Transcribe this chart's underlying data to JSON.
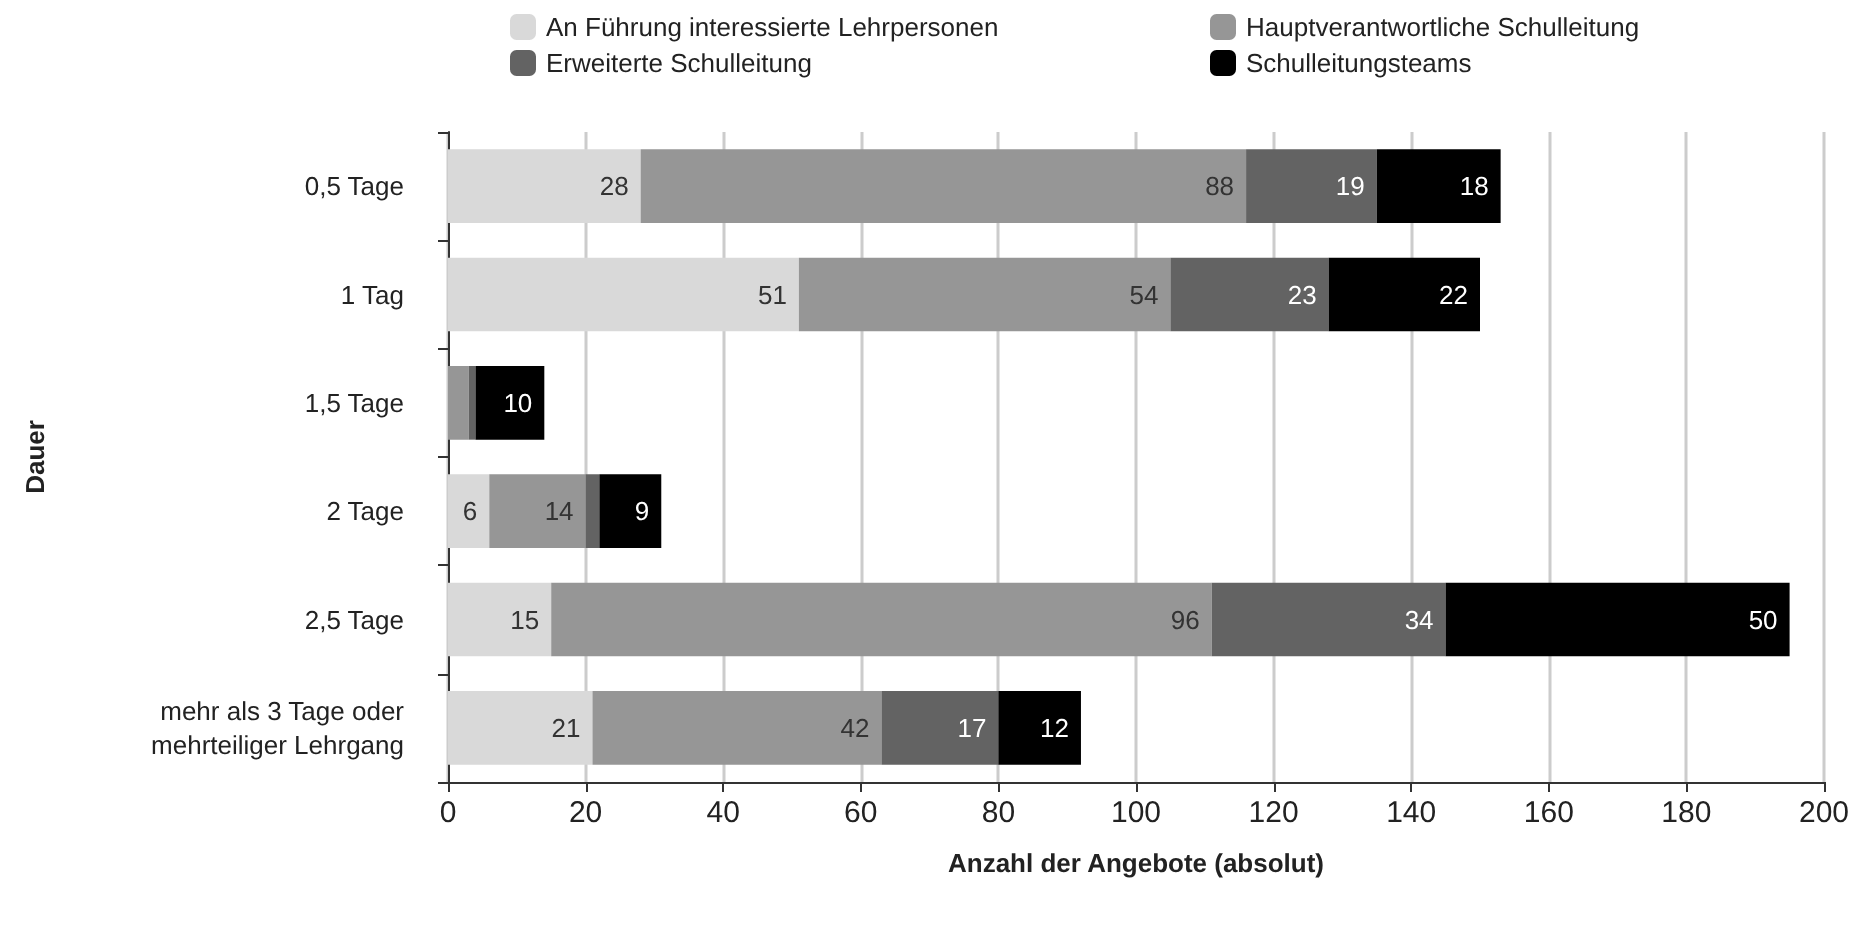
{
  "chart_data": {
    "type": "bar",
    "orientation": "horizontal",
    "stacked": true,
    "xlabel": "Anzahl der Angebote (absolut)",
    "ylabel": "Dauer",
    "categories": [
      "0,5 Tage",
      "1 Tag",
      "1,5 Tage",
      "2 Tage",
      "2,5 Tage",
      "mehr als 3 Tage oder\nmehrteiliger Lehrgang"
    ],
    "series": [
      {
        "name": "An Führung interessierte Lehrpersonen",
        "color": "#d9d9d9",
        "values": [
          28,
          51,
          0,
          6,
          15,
          21
        ],
        "value_labels": [
          "28",
          "51",
          null,
          "6",
          "15",
          "21"
        ]
      },
      {
        "name": "Hauptverantwortliche Schulleitung",
        "color": "#969696",
        "values": [
          88,
          54,
          3,
          14,
          96,
          42
        ],
        "value_labels": [
          "88",
          "54",
          null,
          "14",
          "96",
          "42"
        ]
      },
      {
        "name": "Erweiterte Schulleitung",
        "color": "#636363",
        "values": [
          19,
          23,
          1,
          2,
          34,
          17
        ],
        "value_labels": [
          "19",
          "23",
          null,
          null,
          "34",
          "17"
        ]
      },
      {
        "name": "Schulleitungsteams",
        "color": "#000000",
        "values": [
          18,
          22,
          10,
          9,
          50,
          12
        ],
        "value_labels": [
          "18",
          "22",
          "10",
          "9",
          "50",
          "12"
        ]
      }
    ],
    "xlim": [
      0,
      200
    ],
    "xticks": [
      0,
      20,
      40,
      60,
      80,
      100,
      120,
      140,
      160,
      180,
      200
    ],
    "grid": "x",
    "legend": "top"
  }
}
